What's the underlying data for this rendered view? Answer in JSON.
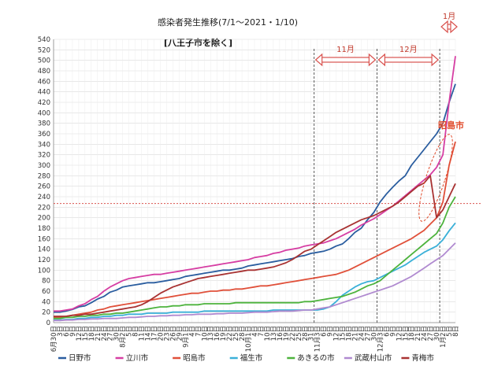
{
  "chart_data": {
    "type": "line",
    "title": "感染者発生推移(7/1～2021・1/10)",
    "subtitle": "[八王子市を除く]",
    "ylim": [
      0,
      540
    ],
    "yticks": [
      0,
      20,
      40,
      60,
      80,
      100,
      120,
      140,
      160,
      180,
      200,
      220,
      240,
      260,
      280,
      300,
      320,
      340,
      360,
      380,
      400,
      420,
      440,
      460,
      480,
      500,
      520,
      540
    ],
    "categories": [
      "6月30日",
      "3日",
      "6日",
      "9日",
      "12日",
      "15日",
      "18日",
      "21日",
      "24日",
      "27日",
      "30日",
      "8月2日",
      "5日",
      "8日",
      "11日",
      "14日",
      "17日",
      "20日",
      "23日",
      "26日",
      "29日",
      "9月1日",
      "4日",
      "7日",
      "10日",
      "13日",
      "16日",
      "19日",
      "22日",
      "25日",
      "28日",
      "10月1日",
      "4日",
      "7日",
      "10日",
      "13日",
      "16日",
      "19日",
      "22日",
      "25日",
      "28日",
      "31日",
      "11月3日",
      "6日",
      "9日",
      "12日",
      "15日",
      "18日",
      "21日",
      "24日",
      "27日",
      "30日",
      "12月3日",
      "6日",
      "9日",
      "12日",
      "15日",
      "18日",
      "21日",
      "24日",
      "27日",
      "30日",
      "1月2日",
      "5日",
      "8日"
    ],
    "month_markers": [
      {
        "label": "11月",
        "from_index": 41.5,
        "to_index": 51.5
      },
      {
        "label": "12月",
        "from_index": 51.5,
        "to_index": 61.5
      },
      {
        "label": "1月",
        "from_index": 61.5,
        "to_index": 64.5
      }
    ],
    "reference_line": 227,
    "annotation": "昭島市",
    "series": [
      {
        "name": "日野市",
        "color": "#2a5d9f",
        "values": [
          20,
          20,
          22,
          25,
          30,
          32,
          38,
          45,
          50,
          58,
          62,
          68,
          70,
          72,
          74,
          76,
          76,
          78,
          80,
          82,
          84,
          88,
          90,
          92,
          94,
          96,
          98,
          100,
          100,
          102,
          104,
          108,
          110,
          112,
          114,
          116,
          118,
          120,
          122,
          126,
          128,
          132,
          134,
          136,
          140,
          146,
          150,
          160,
          172,
          180,
          196,
          210,
          230,
          245,
          258,
          270,
          280,
          300,
          315,
          330,
          345,
          360,
          380,
          420,
          455
        ]
      },
      {
        "name": "立川市",
        "color": "#d63ea3",
        "values": [
          22,
          22,
          24,
          26,
          32,
          36,
          44,
          50,
          60,
          68,
          74,
          80,
          84,
          86,
          88,
          90,
          92,
          92,
          94,
          96,
          98,
          100,
          102,
          104,
          106,
          108,
          110,
          112,
          114,
          116,
          118,
          120,
          124,
          126,
          128,
          132,
          134,
          138,
          140,
          142,
          146,
          148,
          150,
          152,
          156,
          160,
          166,
          172,
          178,
          186,
          192,
          198,
          206,
          214,
          222,
          232,
          242,
          252,
          262,
          272,
          282,
          296,
          320,
          420,
          508
        ]
      },
      {
        "name": "昭島市",
        "color": "#e0503a",
        "values": [
          10,
          10,
          12,
          14,
          16,
          18,
          20,
          24,
          26,
          30,
          32,
          34,
          36,
          38,
          40,
          42,
          44,
          46,
          48,
          50,
          52,
          54,
          56,
          56,
          58,
          60,
          60,
          62,
          62,
          64,
          64,
          66,
          68,
          70,
          70,
          72,
          74,
          76,
          78,
          80,
          82,
          84,
          86,
          88,
          90,
          92,
          96,
          100,
          106,
          112,
          118,
          124,
          130,
          136,
          142,
          148,
          154,
          160,
          168,
          176,
          188,
          200,
          230,
          300,
          345
        ]
      },
      {
        "name": "福生市",
        "color": "#3ab0d8",
        "values": [
          5,
          5,
          6,
          6,
          8,
          8,
          10,
          10,
          12,
          12,
          14,
          14,
          16,
          16,
          16,
          18,
          18,
          18,
          18,
          20,
          20,
          20,
          20,
          20,
          22,
          22,
          22,
          22,
          22,
          22,
          22,
          22,
          22,
          22,
          22,
          24,
          24,
          24,
          24,
          24,
          24,
          24,
          24,
          26,
          30,
          40,
          52,
          60,
          68,
          74,
          78,
          80,
          86,
          92,
          98,
          104,
          110,
          118,
          126,
          134,
          140,
          146,
          158,
          175,
          190
        ]
      },
      {
        "name": "あきるの市",
        "color": "#4db33d",
        "values": [
          8,
          8,
          10,
          10,
          12,
          12,
          14,
          14,
          16,
          16,
          18,
          18,
          20,
          22,
          24,
          26,
          28,
          30,
          30,
          32,
          32,
          34,
          34,
          34,
          36,
          36,
          36,
          36,
          36,
          38,
          38,
          38,
          38,
          38,
          38,
          38,
          38,
          38,
          38,
          38,
          40,
          40,
          42,
          44,
          46,
          48,
          50,
          54,
          58,
          64,
          70,
          74,
          80,
          90,
          100,
          110,
          120,
          130,
          140,
          150,
          160,
          170,
          190,
          220,
          240
        ]
      },
      {
        "name": "武蔵村山市",
        "color": "#b08ad0",
        "values": [
          4,
          4,
          5,
          5,
          6,
          6,
          7,
          7,
          8,
          8,
          8,
          9,
          10,
          10,
          11,
          12,
          12,
          13,
          13,
          14,
          14,
          15,
          15,
          16,
          16,
          16,
          17,
          17,
          18,
          18,
          18,
          19,
          20,
          20,
          20,
          21,
          22,
          22,
          22,
          23,
          24,
          24,
          26,
          28,
          30,
          34,
          38,
          42,
          46,
          50,
          54,
          58,
          62,
          66,
          70,
          76,
          82,
          88,
          96,
          104,
          112,
          120,
          128,
          140,
          152
        ]
      },
      {
        "name": "青梅市",
        "color": "#a83232",
        "values": [
          12,
          12,
          12,
          14,
          14,
          16,
          16,
          18,
          20,
          22,
          24,
          26,
          28,
          30,
          34,
          40,
          48,
          56,
          62,
          68,
          72,
          76,
          80,
          84,
          86,
          88,
          90,
          92,
          94,
          96,
          98,
          100,
          100,
          102,
          104,
          106,
          110,
          114,
          120,
          128,
          136,
          140,
          148,
          156,
          164,
          172,
          178,
          184,
          190,
          196,
          200,
          204,
          210,
          216,
          222,
          230,
          240,
          250,
          260,
          266,
          280,
          200,
          215,
          240,
          265
        ]
      }
    ]
  }
}
